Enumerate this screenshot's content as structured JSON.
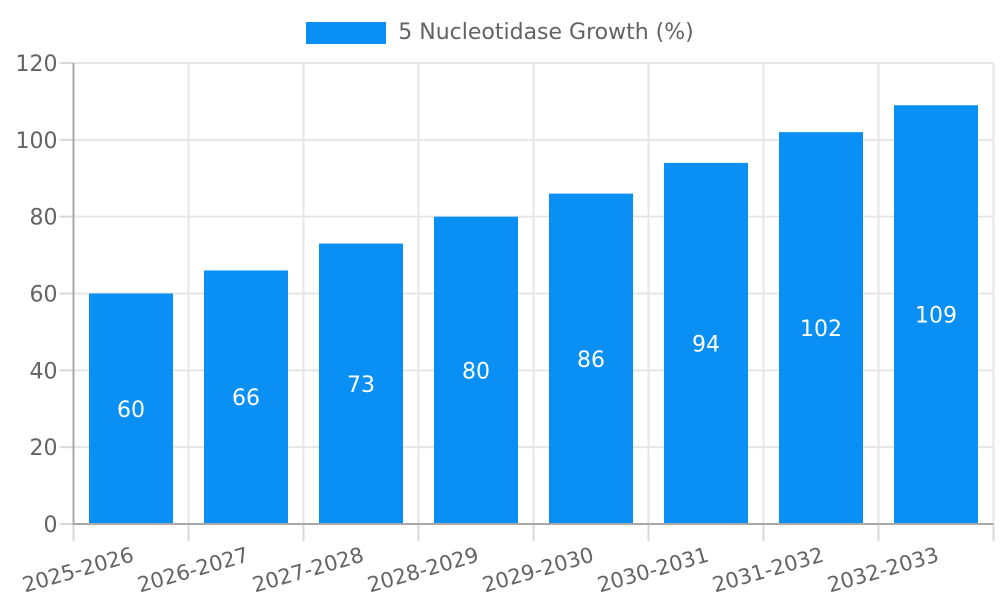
{
  "legend": {
    "position": "top",
    "label": "5 Nucleotidase Growth (%)"
  },
  "colors": {
    "bar": "#0A90F4",
    "grid": "#E6E6E6",
    "axis": "#A8A8A8",
    "tick": "#D9D9D9",
    "text": "#636363",
    "value_label": "#FFFFFF",
    "background": "#FFFFFF"
  },
  "chart_data": {
    "type": "bar",
    "title": "",
    "xlabel": "",
    "ylabel": "",
    "categories": [
      "2025-2026",
      "2026-2027",
      "2027-2028",
      "2028-2029",
      "2029-2030",
      "2030-2031",
      "2031-2032",
      "2032-2033"
    ],
    "series": [
      {
        "name": "5 Nucleotidase Growth (%)",
        "values": [
          60,
          66,
          73,
          80,
          86,
          94,
          102,
          109
        ]
      }
    ],
    "value_labels_shown": true,
    "value_label_position": "inside-center",
    "ylim": [
      0,
      120
    ],
    "yticks": [
      0,
      20,
      40,
      60,
      80,
      100,
      120
    ],
    "grid": true,
    "x_label_rotation_deg": -16,
    "legend_position": "top-center"
  }
}
